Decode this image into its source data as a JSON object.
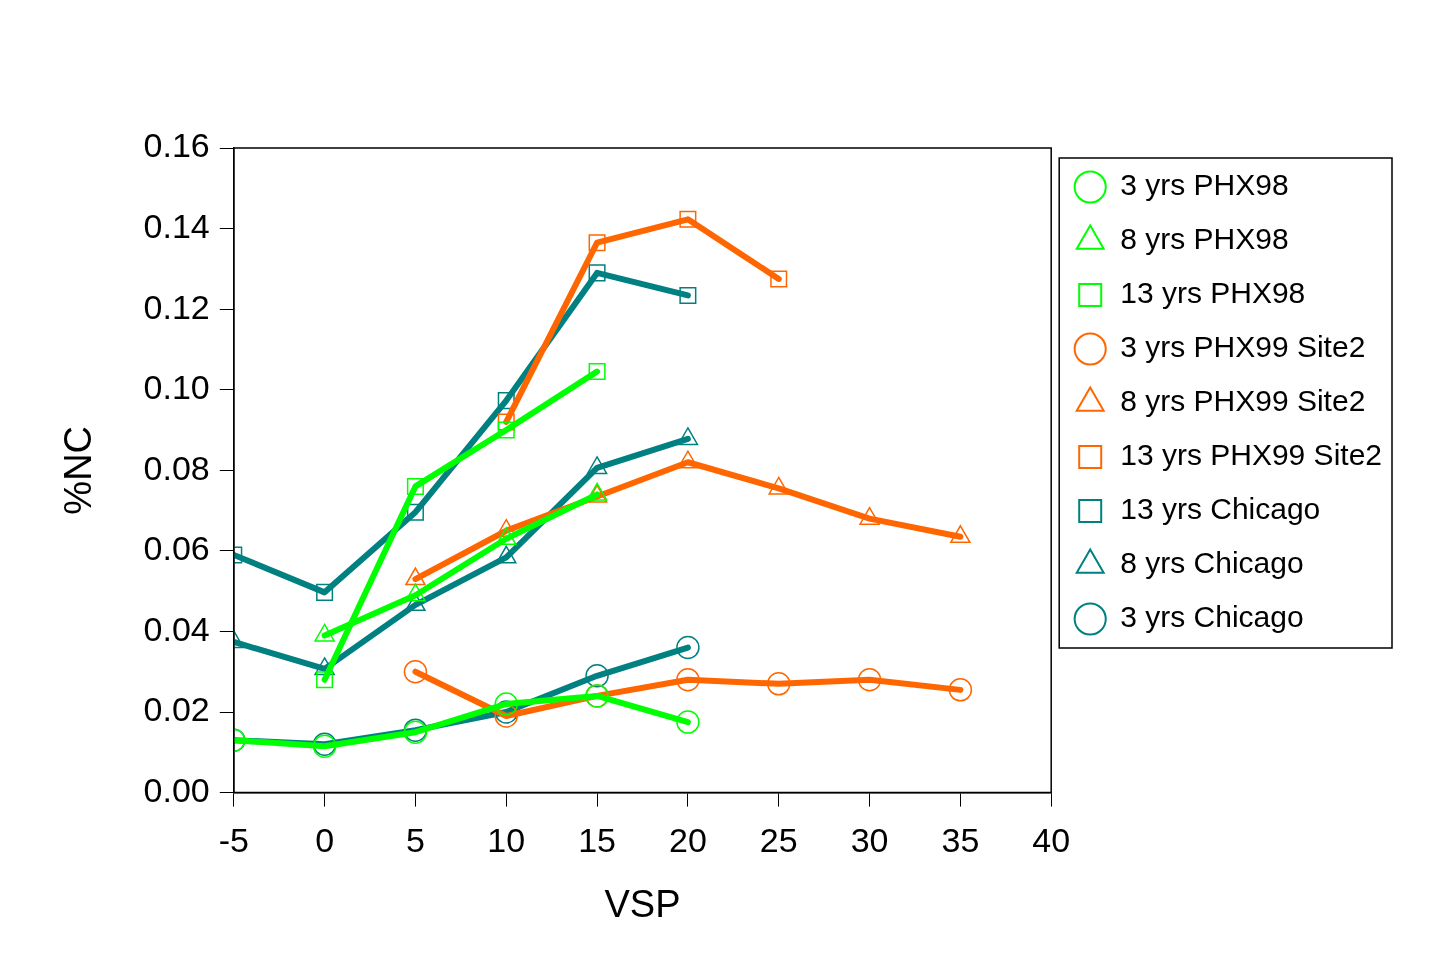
{
  "chart_data": {
    "type": "line",
    "xlabel": "VSP",
    "ylabel": "%NC",
    "xlim": [
      -5,
      40
    ],
    "xticks": [
      -5,
      0,
      5,
      10,
      15,
      20,
      25,
      30,
      35,
      40
    ],
    "ylim": [
      0,
      0.16
    ],
    "yticks": [
      {
        "value": 0,
        "label": "0.00"
      },
      {
        "value": 0.02,
        "label": "0.02"
      },
      {
        "value": 0.04,
        "label": "0.04"
      },
      {
        "value": 0.06,
        "label": "0.06"
      },
      {
        "value": 0.08,
        "label": "0.08"
      },
      {
        "value": 0.1,
        "label": "0.10"
      },
      {
        "value": 0.12,
        "label": "0.12"
      },
      {
        "value": 0.14,
        "label": "0.14"
      },
      {
        "value": 0.16,
        "label": "0.16"
      }
    ],
    "grid": false,
    "legend": "right",
    "line_style": "solid",
    "series": [
      {
        "name": "3 yrs PHX98",
        "color": "#00ff00",
        "marker": "circle",
        "x": [
          -5,
          0,
          5,
          10,
          15,
          20
        ],
        "values": [
          0.013,
          0.0115,
          0.015,
          0.022,
          0.024,
          0.0175
        ]
      },
      {
        "name": "8 yrs PHX98",
        "color": "#00ff00",
        "marker": "triangle",
        "x": [
          0,
          5,
          10,
          15
        ],
        "values": [
          0.039,
          0.049,
          0.063,
          0.074
        ]
      },
      {
        "name": "13 yrs PHX98",
        "color": "#00ff00",
        "marker": "square",
        "x": [
          0,
          5,
          10,
          15
        ],
        "values": [
          0.028,
          0.076,
          0.09,
          0.1045
        ]
      },
      {
        "name": "3 yrs PHX99 Site2",
        "color": "#ff6600",
        "marker": "circle",
        "x": [
          5,
          10,
          15,
          20,
          25,
          30,
          35
        ],
        "values": [
          0.03,
          0.019,
          0.024,
          0.028,
          0.027,
          0.028,
          0.0255
        ]
      },
      {
        "name": "8 yrs PHX99 Site2",
        "color": "#ff6600",
        "marker": "triangle",
        "x": [
          5,
          10,
          15,
          20,
          25,
          30,
          35
        ],
        "values": [
          0.053,
          0.065,
          0.0735,
          0.082,
          0.0755,
          0.068,
          0.0635
        ]
      },
      {
        "name": "13 yrs PHX99 Site2",
        "color": "#ff6600",
        "marker": "square",
        "x": [
          10,
          15,
          20,
          25
        ],
        "values": [
          0.092,
          0.1365,
          0.1423,
          0.1275
        ]
      },
      {
        "name": "13 yrs Chicago",
        "color": "#008080",
        "marker": "square",
        "x": [
          -5,
          0,
          5,
          10,
          15,
          20
        ],
        "values": [
          0.059,
          0.0497,
          0.0696,
          0.0973,
          0.129,
          0.1234
        ]
      },
      {
        "name": "8 yrs Chicago",
        "color": "#008080",
        "marker": "triangle",
        "x": [
          -5,
          0,
          5,
          10,
          15,
          20
        ],
        "values": [
          0.0374,
          0.0307,
          0.0466,
          0.0584,
          0.0806,
          0.0878
        ]
      },
      {
        "name": "3 yrs Chicago",
        "color": "#008080",
        "marker": "circle",
        "x": [
          -5,
          0,
          5,
          10,
          15,
          20
        ],
        "values": [
          0.013,
          0.012,
          0.0155,
          0.02,
          0.029,
          0.036
        ]
      }
    ]
  }
}
